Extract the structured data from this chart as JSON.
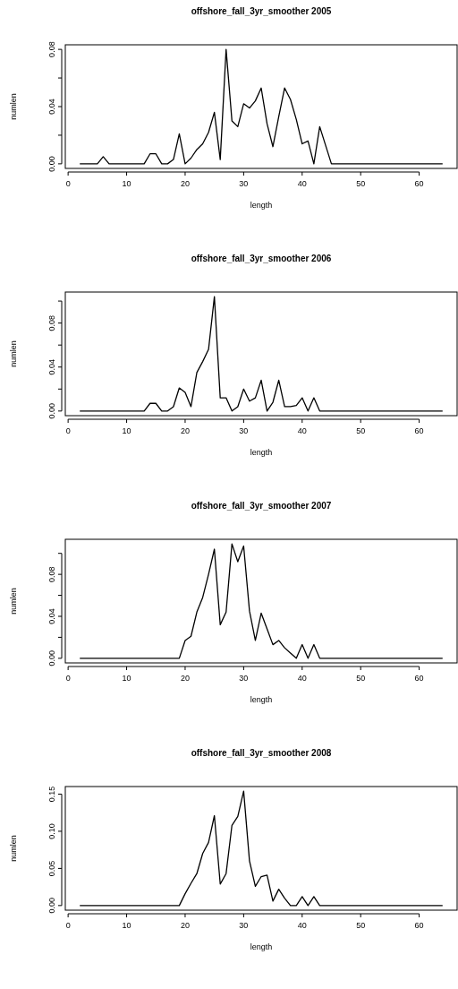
{
  "chart_data": [
    {
      "type": "line",
      "title": "offshore_fall_3yr_smoother 2005",
      "xlabel": "length",
      "ylabel": "numlen",
      "x": [
        2,
        3,
        4,
        5,
        6,
        7,
        8,
        9,
        10,
        11,
        12,
        13,
        14,
        15,
        16,
        17,
        18,
        19,
        20,
        21,
        22,
        23,
        24,
        25,
        26,
        27,
        28,
        29,
        30,
        31,
        32,
        33,
        34,
        35,
        36,
        37,
        38,
        39,
        40,
        41,
        42,
        43,
        44,
        45,
        46,
        47,
        48,
        49,
        50,
        51,
        52,
        53,
        54,
        55,
        56,
        57,
        58,
        59,
        60,
        61,
        62,
        63,
        64
      ],
      "series": [
        {
          "color": "#000000",
          "values": [
            0,
            0,
            0,
            0,
            0.005,
            0,
            0,
            0,
            0,
            0,
            0,
            0,
            0.007,
            0.007,
            0,
            0,
            0.003,
            0.021,
            0,
            0.004,
            0.01,
            0.014,
            0.022,
            0.036,
            0.003,
            0.08,
            0.03,
            0.026,
            0.042,
            0.039,
            0.044,
            0.053,
            0.028,
            0.012,
            0.033,
            0.053,
            0.045,
            0.031,
            0.014,
            0.016,
            0,
            0.026,
            0.013,
            0,
            0,
            0,
            0,
            0,
            0,
            0,
            0,
            0,
            0,
            0,
            0,
            0,
            0,
            0,
            0,
            0,
            0,
            0,
            0
          ]
        }
      ],
      "xlim": [
        -0.48,
        66.48
      ],
      "xticks": [
        0,
        10,
        20,
        30,
        40,
        50,
        60
      ],
      "ylim": [
        -0.0032,
        0.0832
      ],
      "yticks": [
        {
          "value": 0,
          "label": "0.00"
        },
        {
          "value": 0.02,
          "label": null
        },
        0.04,
        {
          "value": 0.06,
          "label": null
        },
        0.08
      ]
    },
    {
      "type": "line",
      "title": "offshore_fall_3yr_smoother 2006",
      "xlabel": "length",
      "ylabel": "numlen",
      "x": [
        2,
        3,
        4,
        5,
        6,
        7,
        8,
        9,
        10,
        11,
        12,
        13,
        14,
        15,
        16,
        17,
        18,
        19,
        20,
        21,
        22,
        23,
        24,
        25,
        26,
        27,
        28,
        29,
        30,
        31,
        32,
        33,
        34,
        35,
        36,
        37,
        38,
        39,
        40,
        41,
        42,
        43,
        44,
        45,
        46,
        47,
        48,
        49,
        50,
        51,
        52,
        53,
        54,
        55,
        56,
        57,
        58,
        59,
        60,
        61,
        62,
        63,
        64
      ],
      "series": [
        {
          "color": "#000000",
          "values": [
            0,
            0,
            0,
            0,
            0,
            0,
            0,
            0,
            0,
            0,
            0,
            0,
            0.007,
            0.007,
            0,
            0,
            0.004,
            0.021,
            0.017,
            0.004,
            0.035,
            0.045,
            0.056,
            0.104,
            0.012,
            0.012,
            0,
            0.004,
            0.02,
            0.009,
            0.012,
            0.028,
            0,
            0.008,
            0.028,
            0.004,
            0.004,
            0.005,
            0.012,
            0,
            0.012,
            0,
            0,
            0,
            0,
            0,
            0,
            0,
            0,
            0,
            0,
            0,
            0,
            0,
            0,
            0,
            0,
            0,
            0,
            0,
            0,
            0,
            0
          ]
        }
      ],
      "xlim": [
        -0.48,
        66.48
      ],
      "xticks": [
        0,
        10,
        20,
        30,
        40,
        50,
        60
      ],
      "ylim": [
        -0.0042,
        0.1082
      ],
      "yticks": [
        {
          "value": 0,
          "label": "0.00"
        },
        {
          "value": 0.02,
          "label": null
        },
        0.04,
        {
          "value": 0.06,
          "label": null
        },
        0.08,
        {
          "value": 0.1,
          "label": null
        }
      ]
    },
    {
      "type": "line",
      "title": "offshore_fall_3yr_smoother 2007",
      "xlabel": "length",
      "ylabel": "numlen",
      "x": [
        2,
        3,
        4,
        5,
        6,
        7,
        8,
        9,
        10,
        11,
        12,
        13,
        14,
        15,
        16,
        17,
        18,
        19,
        20,
        21,
        22,
        23,
        24,
        25,
        26,
        27,
        28,
        29,
        30,
        31,
        32,
        33,
        34,
        35,
        36,
        37,
        38,
        39,
        40,
        41,
        42,
        43,
        44,
        45,
        46,
        47,
        48,
        49,
        50,
        51,
        52,
        53,
        54,
        55,
        56,
        57,
        58,
        59,
        60,
        61,
        62,
        63,
        64
      ],
      "series": [
        {
          "color": "#000000",
          "values": [
            0,
            0,
            0,
            0,
            0,
            0,
            0,
            0,
            0,
            0,
            0,
            0,
            0,
            0,
            0,
            0,
            0,
            0,
            0.017,
            0.021,
            0.044,
            0.058,
            0.08,
            0.104,
            0.032,
            0.044,
            0.109,
            0.092,
            0.107,
            0.045,
            0.017,
            0.043,
            0.028,
            0.013,
            0.017,
            0.01,
            0.005,
            0,
            0.013,
            0,
            0.013,
            0,
            0,
            0,
            0,
            0,
            0,
            0,
            0,
            0,
            0,
            0,
            0,
            0,
            0,
            0,
            0,
            0,
            0,
            0,
            0,
            0,
            0
          ]
        }
      ],
      "xlim": [
        -0.48,
        66.48
      ],
      "xticks": [
        0,
        10,
        20,
        30,
        40,
        50,
        60
      ],
      "ylim": [
        -0.0044,
        0.1134
      ],
      "yticks": [
        {
          "value": 0,
          "label": "0.00"
        },
        {
          "value": 0.02,
          "label": null
        },
        0.04,
        {
          "value": 0.06,
          "label": null
        },
        0.08,
        {
          "value": 0.1,
          "label": null
        }
      ]
    },
    {
      "type": "line",
      "title": "offshore_fall_3yr_smoother 2008",
      "xlabel": "length",
      "ylabel": "numlen",
      "x": [
        2,
        3,
        4,
        5,
        6,
        7,
        8,
        9,
        10,
        11,
        12,
        13,
        14,
        15,
        16,
        17,
        18,
        19,
        20,
        21,
        22,
        23,
        24,
        25,
        26,
        27,
        28,
        29,
        30,
        31,
        32,
        33,
        34,
        35,
        36,
        37,
        38,
        39,
        40,
        41,
        42,
        43,
        44,
        45,
        46,
        47,
        48,
        49,
        50,
        51,
        52,
        53,
        54,
        55,
        56,
        57,
        58,
        59,
        60,
        61,
        62,
        63,
        64
      ],
      "series": [
        {
          "color": "#000000",
          "values": [
            0,
            0,
            0,
            0,
            0,
            0,
            0,
            0,
            0,
            0,
            0,
            0,
            0,
            0,
            0,
            0,
            0,
            0,
            0.016,
            0.03,
            0.043,
            0.07,
            0.085,
            0.121,
            0.029,
            0.043,
            0.108,
            0.12,
            0.154,
            0.06,
            0.026,
            0.039,
            0.041,
            0.006,
            0.022,
            0.01,
            0,
            0,
            0.012,
            0,
            0.012,
            0,
            0,
            0,
            0,
            0,
            0,
            0,
            0,
            0,
            0,
            0,
            0,
            0,
            0,
            0,
            0,
            0,
            0,
            0,
            0,
            0,
            0
          ]
        }
      ],
      "xlim": [
        -0.48,
        66.48
      ],
      "xticks": [
        0,
        10,
        20,
        30,
        40,
        50,
        60
      ],
      "ylim": [
        -0.0062,
        0.1602
      ],
      "yticks": [
        {
          "value": 0,
          "label": "0.00"
        },
        0.05,
        {
          "value": 0.1,
          "label": "0.10"
        },
        0.15
      ]
    }
  ]
}
